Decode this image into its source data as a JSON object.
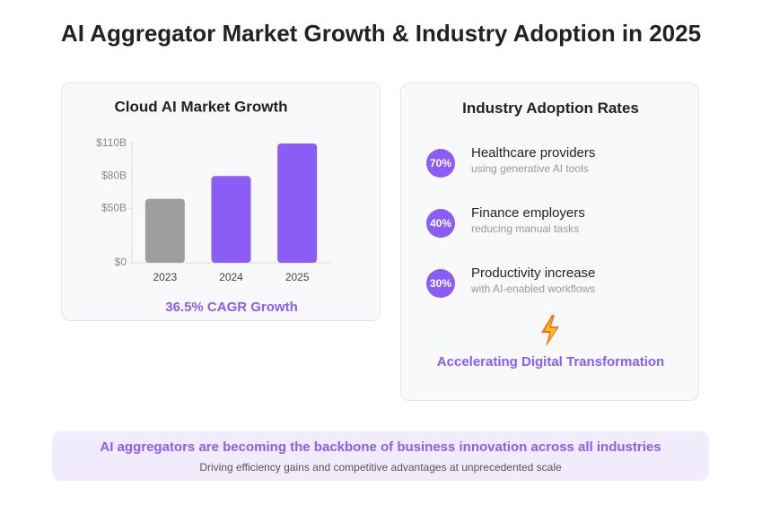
{
  "title": "AI Aggregator Market Growth & Industry Adoption in 2025",
  "chart_data": {
    "type": "bar",
    "title": "Cloud AI Market Growth",
    "categories": [
      "2023",
      "2024",
      "2025"
    ],
    "values": [
      59,
      80,
      110
    ],
    "colors": [
      "#9e9e9e",
      "#8b5cf6",
      "#8b5cf6"
    ],
    "ylim": [
      0,
      110
    ],
    "yticks": [
      {
        "value": 0,
        "label": "$0"
      },
      {
        "value": 50,
        "label": "$50B"
      },
      {
        "value": 80,
        "label": "$80B"
      },
      {
        "value": 110,
        "label": "$110B"
      }
    ],
    "grid": false,
    "annotation": "36.5% CAGR Growth"
  },
  "adoption": {
    "title": "Industry Adoption Rates",
    "items": [
      {
        "badge": "70%",
        "label": "Healthcare providers",
        "detail": "using generative AI tools"
      },
      {
        "badge": "40%",
        "label": "Finance employers",
        "detail": "reducing manual tasks"
      },
      {
        "badge": "30%",
        "label": "Productivity increase",
        "detail": "with AI-enabled workflows"
      }
    ],
    "footer": "Accelerating Digital Transformation"
  },
  "banner": {
    "headline": "AI aggregators are becoming the backbone of business innovation across all industries",
    "subtext": "Driving efficiency gains and competitive advantages at unprecedented scale"
  }
}
